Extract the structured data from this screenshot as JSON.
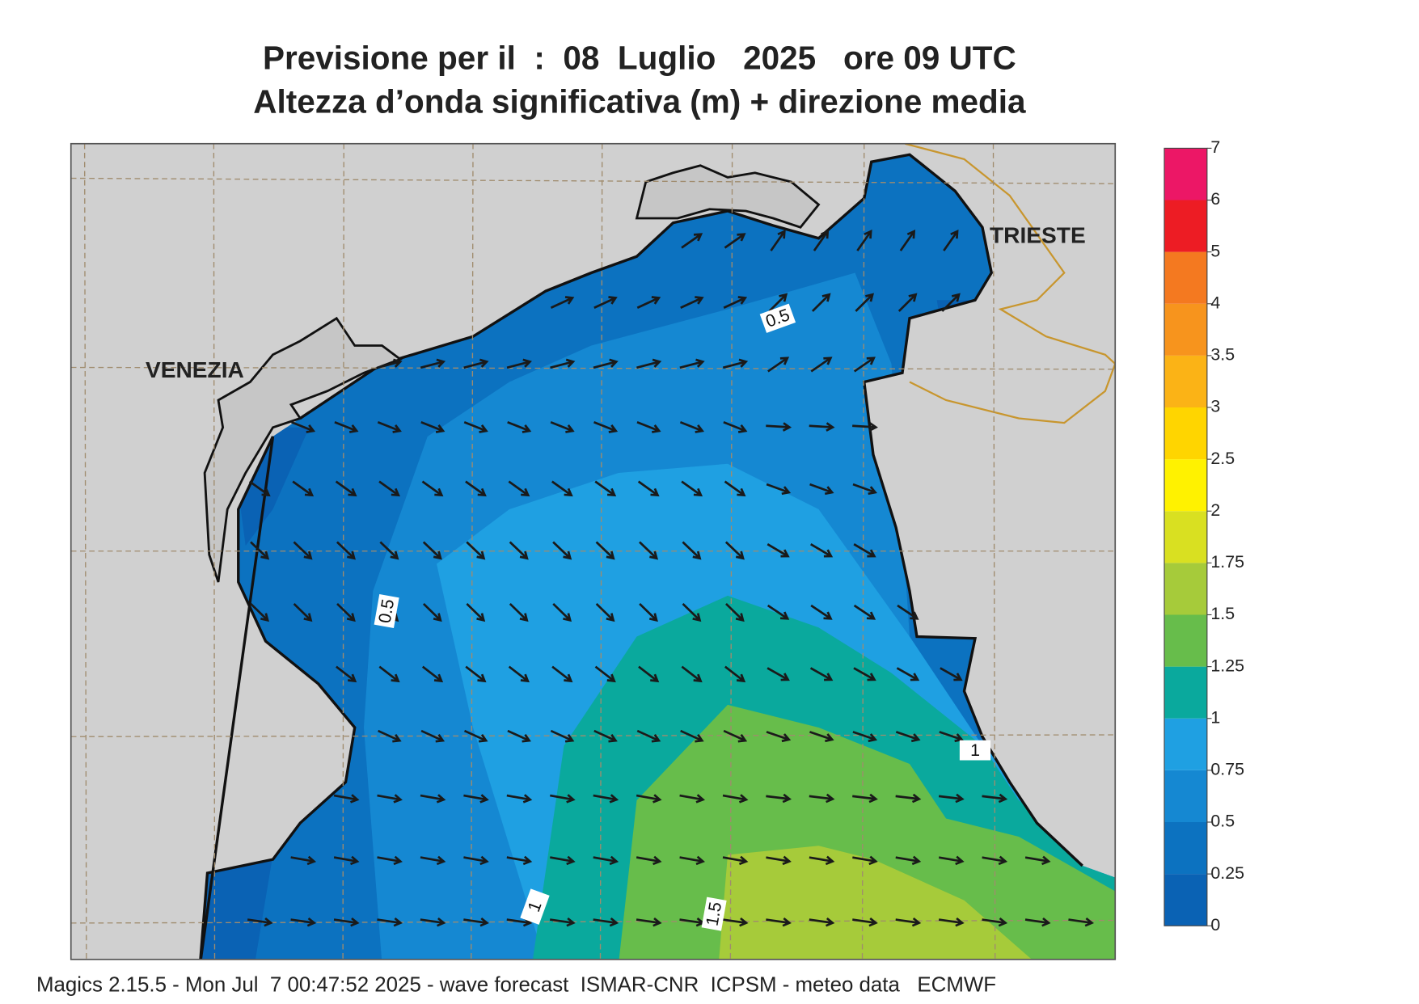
{
  "header": {
    "title": "Previsione per il  :  08  Luglio   2025   ore 09 UTC",
    "subtitle": "Altezza d’onda significativa (m) + direzione media"
  },
  "map": {
    "places": [
      "VENEZIA",
      "TRIESTE"
    ],
    "contour_labels": [
      0.5,
      0.5,
      1,
      1,
      1.5
    ]
  },
  "legend": {
    "levels": [
      0,
      0.25,
      0.5,
      0.75,
      1,
      1.25,
      1.5,
      1.75,
      2,
      2.5,
      3,
      3.5,
      4,
      5,
      6,
      7
    ],
    "colors": [
      "#0a62b4",
      "#0c72c0",
      "#1588d2",
      "#1fa0e2",
      "#0aa99d",
      "#67bd4b",
      "#a6cb3a",
      "#d9e021",
      "#fff200",
      "#ffd500",
      "#fbb316",
      "#f7941d",
      "#f47920",
      "#ed1c24",
      "#ec1766"
    ]
  },
  "footer": "Magics 2.15.5 - Mon Jul  7 00:47:52 2025 - wave forecast  ISMAR-CNR  ICPSM - meteo data   ECMWF"
}
